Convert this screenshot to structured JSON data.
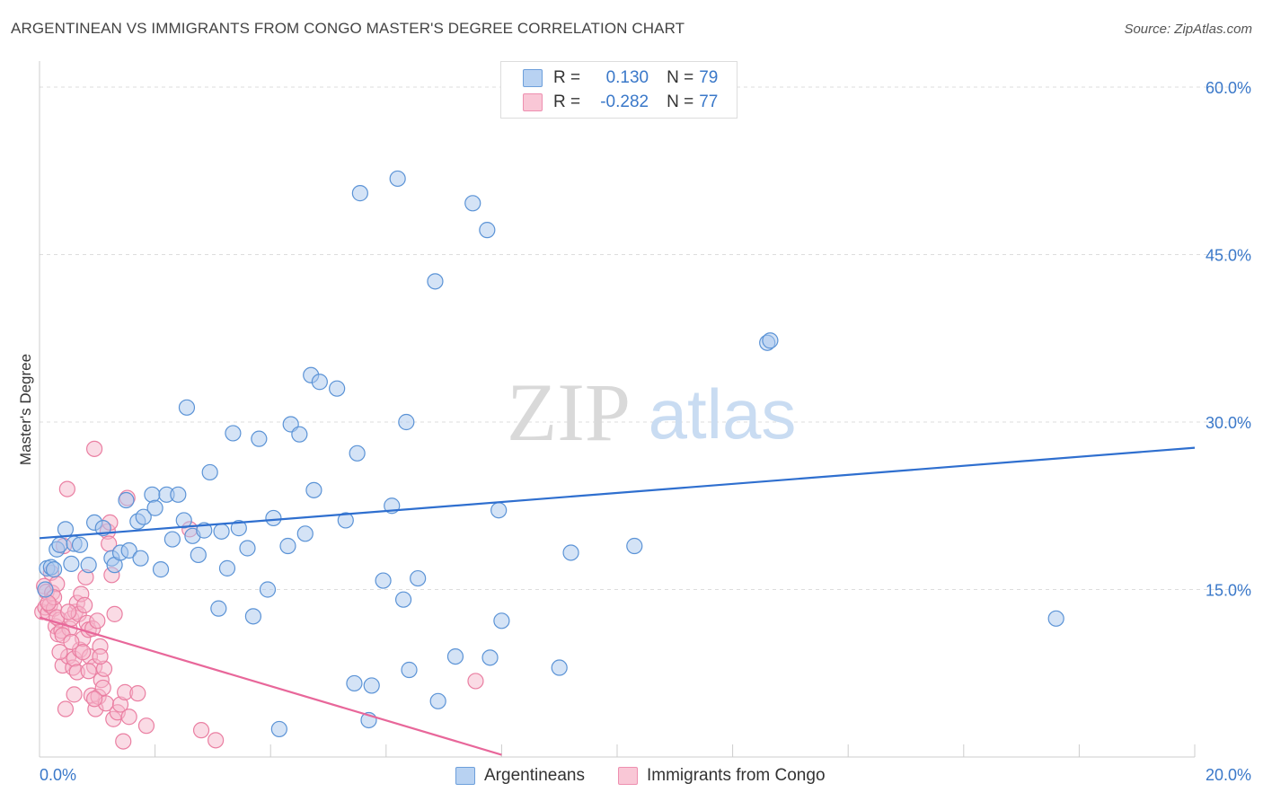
{
  "title": "ARGENTINEAN VS IMMIGRANTS FROM CONGO MASTER'S DEGREE CORRELATION CHART",
  "source": "Source: ZipAtlas.com",
  "watermark": {
    "zip": "ZIP",
    "atlas": "atlas"
  },
  "legend": {
    "r_label": "R =",
    "n_label": "N =",
    "rows": [
      {
        "r": "0.130",
        "n": "79"
      },
      {
        "r": "-0.282",
        "n": "77"
      }
    ]
  },
  "colors": {
    "blue_fill": "#a9c8ee",
    "blue_stroke": "#5b93d6",
    "blue_line": "#2f6fcf",
    "pink_fill": "#f6b7cb",
    "pink_stroke": "#ea7fa2",
    "pink_line": "#e8679a",
    "axis_text": "#3a78c9",
    "grid": "#dddddd"
  },
  "chart_data": {
    "type": "scatter",
    "title": "ARGENTINEAN VS IMMIGRANTS FROM CONGO MASTER'S DEGREE CORRELATION CHART",
    "xlabel": "",
    "ylabel": "Master's Degree",
    "xlim": [
      0,
      20
    ],
    "ylim": [
      0,
      60
    ],
    "x_ticks": [
      "0.0%",
      "20.0%"
    ],
    "y_ticks": [
      {
        "value": 15,
        "label": "15.0%"
      },
      {
        "value": 30,
        "label": "30.0%"
      },
      {
        "value": 45,
        "label": "45.0%"
      },
      {
        "value": 60,
        "label": "60.0%"
      }
    ],
    "series": [
      {
        "name": "Argentineans",
        "trend": {
          "x": [
            0,
            20
          ],
          "y": [
            19.6,
            27.7
          ]
        },
        "points": [
          [
            0.13,
            16.9
          ],
          [
            0.2,
            17.0
          ],
          [
            0.25,
            16.8
          ],
          [
            0.3,
            18.6
          ],
          [
            0.35,
            19.0
          ],
          [
            0.45,
            20.4
          ],
          [
            0.55,
            17.3
          ],
          [
            0.6,
            19.1
          ],
          [
            0.7,
            19.0
          ],
          [
            0.85,
            17.2
          ],
          [
            0.95,
            21.0
          ],
          [
            1.1,
            20.5
          ],
          [
            1.25,
            17.8
          ],
          [
            1.3,
            17.2
          ],
          [
            1.4,
            18.3
          ],
          [
            1.5,
            23.0
          ],
          [
            1.55,
            18.5
          ],
          [
            1.7,
            21.1
          ],
          [
            1.75,
            17.8
          ],
          [
            1.8,
            21.5
          ],
          [
            1.95,
            23.5
          ],
          [
            2.0,
            22.3
          ],
          [
            2.1,
            16.8
          ],
          [
            2.2,
            23.5
          ],
          [
            2.3,
            19.5
          ],
          [
            2.4,
            23.5
          ],
          [
            2.5,
            21.2
          ],
          [
            2.55,
            31.3
          ],
          [
            2.65,
            19.8
          ],
          [
            2.75,
            18.1
          ],
          [
            2.85,
            20.3
          ],
          [
            2.95,
            25.5
          ],
          [
            3.1,
            13.3
          ],
          [
            3.15,
            20.2
          ],
          [
            3.25,
            16.9
          ],
          [
            3.35,
            29.0
          ],
          [
            3.45,
            20.5
          ],
          [
            3.6,
            18.7
          ],
          [
            3.7,
            12.6
          ],
          [
            3.8,
            28.5
          ],
          [
            3.95,
            15.0
          ],
          [
            4.05,
            21.4
          ],
          [
            4.15,
            2.5
          ],
          [
            4.3,
            18.9
          ],
          [
            4.35,
            29.8
          ],
          [
            4.5,
            28.9
          ],
          [
            4.6,
            20.0
          ],
          [
            4.7,
            34.2
          ],
          [
            4.75,
            23.9
          ],
          [
            4.85,
            33.6
          ],
          [
            5.15,
            33.0
          ],
          [
            5.3,
            21.2
          ],
          [
            5.45,
            6.6
          ],
          [
            5.5,
            27.2
          ],
          [
            5.55,
            50.5
          ],
          [
            5.7,
            3.3
          ],
          [
            5.75,
            6.4
          ],
          [
            5.95,
            15.8
          ],
          [
            6.1,
            22.5
          ],
          [
            6.2,
            51.8
          ],
          [
            6.3,
            14.1
          ],
          [
            6.35,
            30.0
          ],
          [
            6.4,
            7.8
          ],
          [
            6.55,
            16.0
          ],
          [
            6.85,
            42.6
          ],
          [
            6.9,
            5.0
          ],
          [
            7.2,
            9.0
          ],
          [
            7.5,
            49.6
          ],
          [
            7.75,
            47.2
          ],
          [
            7.8,
            8.9
          ],
          [
            7.95,
            22.1
          ],
          [
            8.0,
            12.2
          ],
          [
            9.0,
            8.0
          ],
          [
            9.2,
            18.3
          ],
          [
            10.3,
            18.9
          ],
          [
            12.6,
            37.1
          ],
          [
            12.65,
            37.3
          ],
          [
            17.6,
            12.4
          ],
          [
            0.1,
            15.0
          ]
        ]
      },
      {
        "name": "Immigrants from Congo",
        "trend": {
          "x": [
            0,
            8.0
          ],
          "y": [
            12.5,
            0.2
          ]
        },
        "points": [
          [
            0.05,
            13.0
          ],
          [
            0.08,
            15.3
          ],
          [
            0.1,
            13.4
          ],
          [
            0.12,
            14.8
          ],
          [
            0.15,
            12.9
          ],
          [
            0.18,
            13.6
          ],
          [
            0.2,
            16.5
          ],
          [
            0.22,
            14.7
          ],
          [
            0.25,
            13.3
          ],
          [
            0.28,
            11.7
          ],
          [
            0.3,
            15.5
          ],
          [
            0.32,
            11.0
          ],
          [
            0.35,
            12.3
          ],
          [
            0.38,
            11.3
          ],
          [
            0.4,
            8.2
          ],
          [
            0.42,
            18.9
          ],
          [
            0.45,
            4.3
          ],
          [
            0.48,
            24.0
          ],
          [
            0.5,
            9.0
          ],
          [
            0.52,
            11.5
          ],
          [
            0.55,
            12.4
          ],
          [
            0.58,
            8.0
          ],
          [
            0.6,
            8.8
          ],
          [
            0.62,
            13.0
          ],
          [
            0.65,
            13.8
          ],
          [
            0.68,
            12.8
          ],
          [
            0.7,
            9.6
          ],
          [
            0.72,
            14.6
          ],
          [
            0.75,
            10.6
          ],
          [
            0.78,
            13.6
          ],
          [
            0.8,
            16.1
          ],
          [
            0.82,
            12.0
          ],
          [
            0.85,
            11.4
          ],
          [
            0.87,
            9.0
          ],
          [
            0.9,
            5.5
          ],
          [
            0.92,
            11.5
          ],
          [
            0.95,
            8.1
          ],
          [
            0.97,
            4.3
          ],
          [
            1.0,
            12.2
          ],
          [
            1.02,
            5.4
          ],
          [
            1.05,
            9.9
          ],
          [
            1.07,
            6.9
          ],
          [
            1.1,
            6.2
          ],
          [
            1.12,
            7.9
          ],
          [
            1.15,
            4.8
          ],
          [
            1.18,
            20.2
          ],
          [
            1.2,
            19.1
          ],
          [
            1.22,
            21.0
          ],
          [
            1.25,
            16.3
          ],
          [
            1.28,
            3.4
          ],
          [
            1.3,
            12.8
          ],
          [
            1.35,
            4.0
          ],
          [
            1.4,
            4.7
          ],
          [
            1.45,
            1.4
          ],
          [
            1.48,
            5.8
          ],
          [
            1.52,
            23.2
          ],
          [
            1.55,
            3.6
          ],
          [
            1.7,
            5.7
          ],
          [
            1.85,
            2.8
          ],
          [
            2.6,
            20.4
          ],
          [
            2.8,
            2.4
          ],
          [
            3.05,
            1.5
          ],
          [
            7.55,
            6.8
          ],
          [
            0.95,
            27.6
          ],
          [
            0.6,
            5.6
          ],
          [
            0.3,
            12.5
          ],
          [
            0.4,
            10.9
          ],
          [
            0.5,
            13.0
          ],
          [
            0.65,
            7.6
          ],
          [
            0.75,
            9.4
          ],
          [
            0.85,
            7.7
          ],
          [
            0.95,
            5.2
          ],
          [
            1.05,
            9.0
          ],
          [
            0.25,
            14.3
          ],
          [
            0.35,
            9.4
          ],
          [
            0.55,
            10.3
          ],
          [
            0.15,
            13.8
          ]
        ]
      }
    ]
  },
  "bottom_legend": [
    "Argentineans",
    "Immigrants from Congo"
  ]
}
